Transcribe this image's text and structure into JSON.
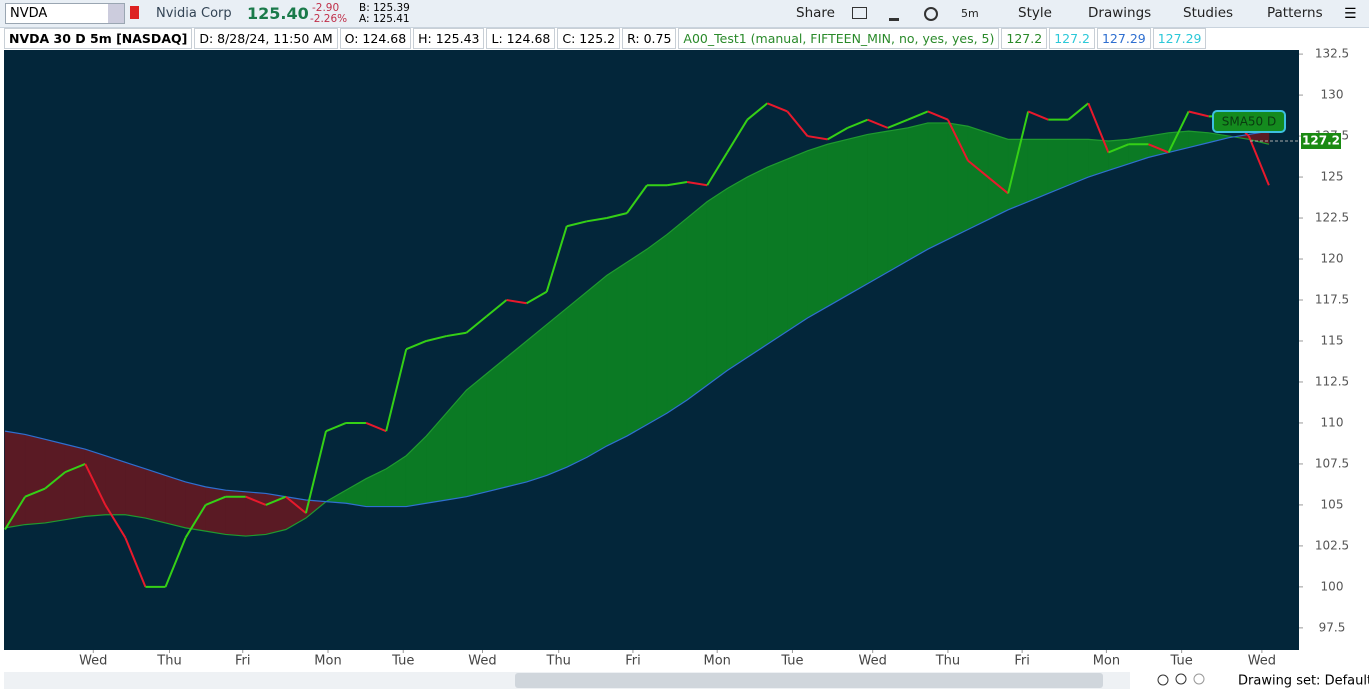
{
  "toolbar": {
    "symbol": "NVDA",
    "company": "Nvidia Corp",
    "last": "125.40",
    "change": "-2.90",
    "change_pct": "-2.26%",
    "bid": "B: 125.39",
    "ask": "A: 125.41",
    "buttons": [
      "Share",
      "5m",
      "Style",
      "Drawings",
      "Studies",
      "Patterns"
    ]
  },
  "info_bar": {
    "chart_name": "NVDA 30 D 5m [NASDAQ]",
    "date": "D: 8/28/24, 11:50 AM",
    "open": "O: 124.68",
    "high": "H: 125.43",
    "low": "L: 124.68",
    "close": "C: 125.2",
    "range": "R: 0.75",
    "study": "A00_Test1 (manual, FIFTEEN_MIN, no, yes, yes, 5)",
    "study_values": [
      "127.2",
      "127.2",
      "127.29",
      "127.29"
    ]
  },
  "footer": {
    "drawing_set": "Drawing set: Default"
  },
  "chart_data": {
    "type": "line",
    "xlim": [
      -0.05,
      64.5
    ],
    "xticks": [
      {
        "value": 4.4,
        "label": "Wed"
      },
      {
        "value": 8.2,
        "label": "Thu"
      },
      {
        "value": 11.85,
        "label": "Fri"
      },
      {
        "value": 16.1,
        "label": "Mon"
      },
      {
        "value": 19.85,
        "label": "Tue"
      },
      {
        "value": 23.8,
        "label": "Wed"
      },
      {
        "value": 27.6,
        "label": "Thu"
      },
      {
        "value": 31.3,
        "label": "Fri"
      },
      {
        "value": 35.5,
        "label": "Mon"
      },
      {
        "value": 39.25,
        "label": "Tue"
      },
      {
        "value": 43.25,
        "label": "Wed"
      },
      {
        "value": 47,
        "label": "Thu"
      },
      {
        "value": 50.7,
        "label": "Fri"
      },
      {
        "value": 54.9,
        "label": "Mon"
      },
      {
        "value": 58.65,
        "label": "Tue"
      },
      {
        "value": 62.65,
        "label": "Wed"
      }
    ],
    "ylim": [
      96.15,
      132.75
    ],
    "yticks": [
      97.5,
      100,
      102.5,
      105,
      107.5,
      110,
      112.5,
      115,
      117.5,
      120,
      122.5,
      125,
      127.5,
      130,
      132.5
    ],
    "background": "#03263a",
    "price": {
      "up_color": "#35d016",
      "down_color": "#e8192c",
      "values": [
        103.5,
        105.5,
        106,
        107,
        107.5,
        105,
        103,
        100,
        100,
        103,
        105,
        105.5,
        105.5,
        105,
        105.5,
        104.5,
        109.5,
        110,
        110,
        109.5,
        114.5,
        115,
        115.3,
        115.5,
        116.5,
        117.5,
        117.3,
        118,
        122,
        122.3,
        122.5,
        122.8,
        124.5,
        124.5,
        124.7,
        124.5,
        126.5,
        128.5,
        129.5,
        129,
        127.5,
        127.3,
        128,
        128.5,
        128,
        128.5,
        129,
        128.5,
        126,
        125,
        124,
        129,
        128.5,
        128.5,
        129.5,
        126.5,
        127,
        127,
        126.5,
        129,
        128.7,
        128.7,
        127.5,
        124.5
      ]
    },
    "fast": {
      "color": "#1f9a2f",
      "values": [
        103.6,
        103.8,
        103.9,
        104.1,
        104.3,
        104.4,
        104.4,
        104.2,
        103.9,
        103.6,
        103.4,
        103.2,
        103.1,
        103.2,
        103.5,
        104.2,
        105.2,
        105.9,
        106.6,
        107.2,
        108.0,
        109.2,
        110.6,
        112.0,
        113.0,
        114.0,
        115.0,
        116.0,
        117.0,
        118.0,
        119.0,
        119.8,
        120.6,
        121.5,
        122.5,
        123.5,
        124.3,
        125.0,
        125.6,
        126.1,
        126.6,
        127.0,
        127.3,
        127.6,
        127.8,
        128.0,
        128.3,
        128.3,
        128.1,
        127.7,
        127.3,
        127.3,
        127.3,
        127.3,
        127.3,
        127.2,
        127.3,
        127.5,
        127.7,
        127.8,
        127.7,
        127.5,
        127.3,
        127.0
      ]
    },
    "slow": {
      "color": "#2f6fd0",
      "values": [
        109.5,
        109.3,
        109.0,
        108.7,
        108.4,
        108.0,
        107.6,
        107.2,
        106.8,
        106.4,
        106.1,
        105.9,
        105.8,
        105.7,
        105.5,
        105.3,
        105.2,
        105.1,
        104.9,
        104.9,
        104.9,
        105.1,
        105.3,
        105.5,
        105.8,
        106.1,
        106.4,
        106.8,
        107.3,
        107.9,
        108.6,
        109.2,
        109.9,
        110.6,
        111.4,
        112.3,
        113.2,
        114.0,
        114.8,
        115.6,
        116.4,
        117.1,
        117.8,
        118.5,
        119.2,
        119.9,
        120.6,
        121.2,
        121.8,
        122.4,
        123.0,
        123.5,
        124.0,
        124.5,
        125.0,
        125.4,
        125.8,
        126.2,
        126.5,
        126.8,
        127.1,
        127.4,
        127.6,
        127.8
      ]
    },
    "fill_up_color": "#0b7a24",
    "fill_down_color": "#5a1a24",
    "price_label": 127.2,
    "price_label_color": "#1a8a12",
    "annotation": "SMA50 D"
  }
}
